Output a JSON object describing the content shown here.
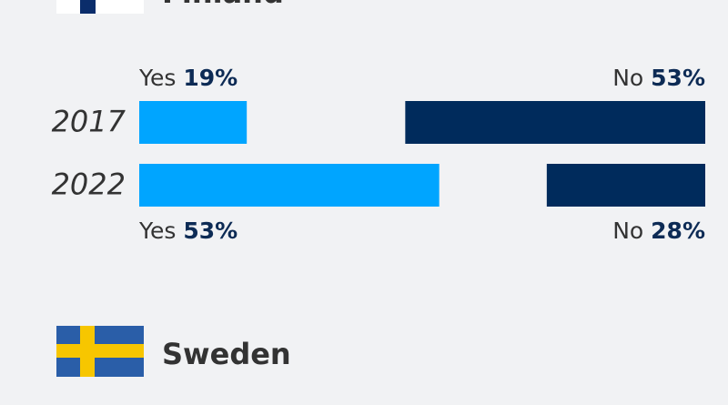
{
  "chart_data": [
    {
      "type": "bar",
      "title": "Finland",
      "categories": [
        "2017",
        "2022"
      ],
      "series": [
        {
          "name": "Yes",
          "color": "#00a5ff",
          "values": [
            19,
            53
          ],
          "value_labels": [
            "19%",
            "53%"
          ]
        },
        {
          "name": "No",
          "color": "#002b5c",
          "values": [
            53,
            28
          ],
          "value_labels": [
            "53%",
            "28%"
          ]
        }
      ],
      "xlim": [
        0,
        100
      ]
    },
    {
      "type": "bar",
      "title": "Sweden"
    }
  ]
}
